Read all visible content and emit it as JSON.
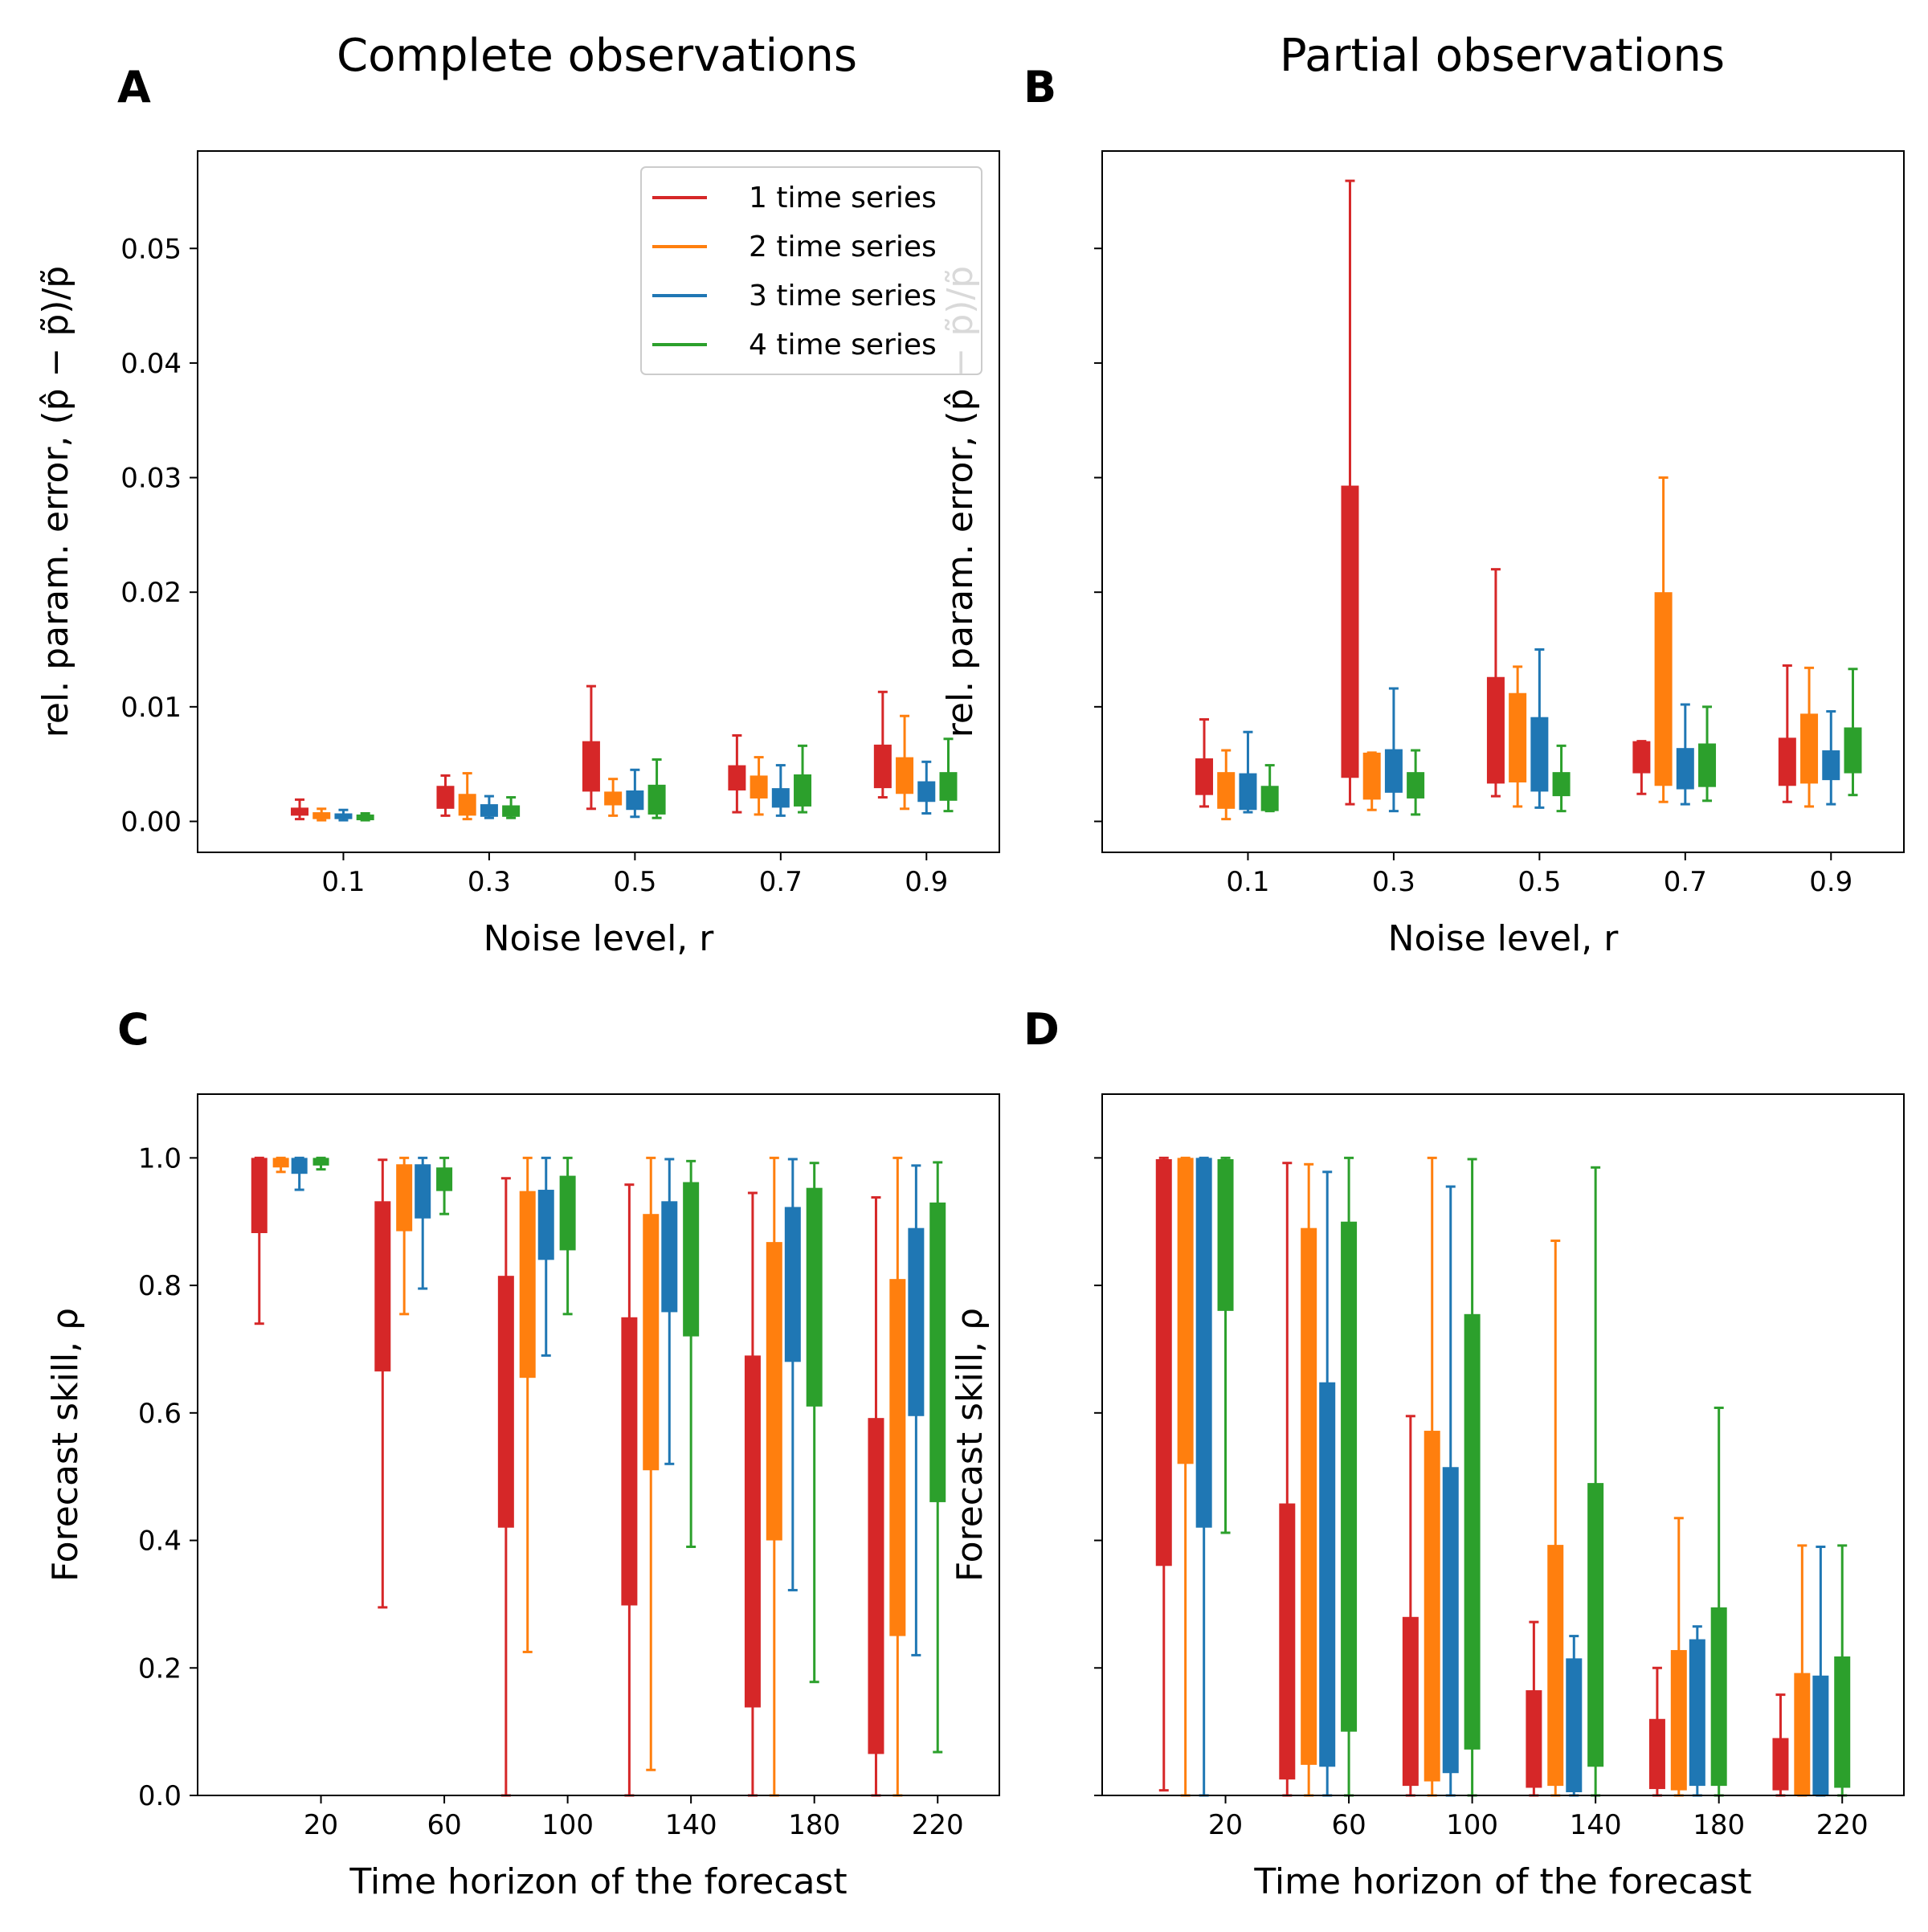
{
  "column_titles": [
    "Complete observations",
    "Partial observations"
  ],
  "legend": {
    "placement": "top-right",
    "items": [
      {
        "label": "1 time series",
        "color": "#d62728"
      },
      {
        "label": "2 time series",
        "color": "#ff7f0e"
      },
      {
        "label": "3 time series",
        "color": "#1f77b4"
      },
      {
        "label": "4 time series",
        "color": "#2ca02c"
      }
    ]
  },
  "chart_data": [
    {
      "panel": "A",
      "type": "box",
      "title": "Complete observations",
      "xlabel": "Noise level, r",
      "ylabel": "rel. param. error, (p̂ − p̃)/p̃",
      "xlim": [
        -0.1,
        1.0
      ],
      "ylim": [
        -0.0027,
        0.0585
      ],
      "xticks": [
        0.1,
        0.3,
        0.5,
        0.7,
        0.9
      ],
      "xtick_labels": [
        "0.1",
        "0.3",
        "0.5",
        "0.7",
        "0.9"
      ],
      "yticks": [
        0.0,
        0.01,
        0.02,
        0.03,
        0.04,
        0.05
      ],
      "ytick_labels": [
        "0.00",
        "0.01",
        "0.02",
        "0.03",
        "0.04",
        "0.05"
      ],
      "group_centers": [
        0.1,
        0.3,
        0.5,
        0.7,
        0.9
      ],
      "series": [
        {
          "name": "1 time series",
          "color": "#d62728",
          "x": [
            0.04,
            0.24,
            0.44,
            0.64,
            0.84
          ],
          "boxes": [
            [
              0.0002,
              0.0005,
              0.0012,
              0.0019
            ],
            [
              0.0005,
              0.0011,
              0.0031,
              0.004
            ],
            [
              0.0011,
              0.0026,
              0.007,
              0.0118
            ],
            [
              0.0008,
              0.0027,
              0.0049,
              0.0075
            ],
            [
              0.0021,
              0.0029,
              0.0067,
              0.0113
            ]
          ]
        },
        {
          "name": "2 time series",
          "color": "#ff7f0e",
          "x": [
            0.07,
            0.27,
            0.47,
            0.67,
            0.87
          ],
          "boxes": [
            [
              0.0001,
              0.0002,
              0.0008,
              0.0011
            ],
            [
              0.0002,
              0.0005,
              0.0024,
              0.0042
            ],
            [
              0.0005,
              0.0014,
              0.0026,
              0.0037
            ],
            [
              0.0006,
              0.002,
              0.004,
              0.0056
            ],
            [
              0.0011,
              0.0024,
              0.0056,
              0.0092
            ]
          ]
        },
        {
          "name": "3 time series",
          "color": "#1f77b4",
          "x": [
            0.1,
            0.3,
            0.5,
            0.7,
            0.9
          ],
          "boxes": [
            [
              0.0001,
              0.0002,
              0.0007,
              0.001
            ],
            [
              0.0003,
              0.0004,
              0.0015,
              0.0022
            ],
            [
              0.0004,
              0.001,
              0.0027,
              0.0045
            ],
            [
              0.0005,
              0.0012,
              0.0029,
              0.0049
            ],
            [
              0.0007,
              0.0017,
              0.0035,
              0.0052
            ]
          ]
        },
        {
          "name": "4 time series",
          "color": "#2ca02c",
          "x": [
            0.13,
            0.33,
            0.53,
            0.73,
            0.93
          ],
          "boxes": [
            [
              0.0001,
              0.0001,
              0.0006,
              0.0007
            ],
            [
              0.0003,
              0.0004,
              0.0014,
              0.0021
            ],
            [
              0.0003,
              0.0006,
              0.0032,
              0.0054
            ],
            [
              0.0008,
              0.0013,
              0.0041,
              0.0066
            ],
            [
              0.0009,
              0.0018,
              0.0043,
              0.0072
            ]
          ]
        }
      ]
    },
    {
      "panel": "B",
      "type": "box",
      "title": "Partial observations",
      "xlabel": "Noise level, r",
      "ylabel": "rel. param. error, (p̂ − p̃)/p̃",
      "xlim": [
        -0.1,
        1.0
      ],
      "ylim": [
        -0.0027,
        0.0585
      ],
      "xticks": [
        0.1,
        0.3,
        0.5,
        0.7,
        0.9
      ],
      "xtick_labels": [
        "0.1",
        "0.3",
        "0.5",
        "0.7",
        "0.9"
      ],
      "yticks": [
        0.0,
        0.01,
        0.02,
        0.03,
        0.04,
        0.05
      ],
      "ytick_labels": [],
      "group_centers": [
        0.1,
        0.3,
        0.5,
        0.7,
        0.9
      ],
      "series": [
        {
          "name": "1 time series",
          "color": "#d62728",
          "x": [
            0.04,
            0.24,
            0.44,
            0.64,
            0.84
          ],
          "boxes": [
            [
              0.0013,
              0.0023,
              0.0055,
              0.0089
            ],
            [
              0.0015,
              0.0038,
              0.0293,
              0.0559
            ],
            [
              0.0022,
              0.0033,
              0.0126,
              0.022
            ],
            [
              0.0024,
              0.0042,
              0.007,
              0.007
            ],
            [
              0.0017,
              0.0031,
              0.0073,
              0.0136
            ]
          ]
        },
        {
          "name": "2 time series",
          "color": "#ff7f0e",
          "x": [
            0.07,
            0.27,
            0.47,
            0.67,
            0.87
          ],
          "boxes": [
            [
              0.0002,
              0.0011,
              0.0043,
              0.0062
            ],
            [
              0.001,
              0.0019,
              0.006,
              0.006
            ],
            [
              0.0013,
              0.0034,
              0.0112,
              0.0135
            ],
            [
              0.0017,
              0.0031,
              0.02,
              0.03
            ],
            [
              0.0013,
              0.0033,
              0.0094,
              0.0134
            ]
          ]
        },
        {
          "name": "3 time series",
          "color": "#1f77b4",
          "x": [
            0.1,
            0.3,
            0.5,
            0.7,
            0.9
          ],
          "boxes": [
            [
              0.0008,
              0.001,
              0.0042,
              0.0078
            ],
            [
              0.0009,
              0.0025,
              0.0063,
              0.0116
            ],
            [
              0.0012,
              0.0026,
              0.0091,
              0.015
            ],
            [
              0.0015,
              0.0028,
              0.0064,
              0.0102
            ],
            [
              0.0015,
              0.0036,
              0.0062,
              0.0096
            ]
          ]
        },
        {
          "name": "4 time series",
          "color": "#2ca02c",
          "x": [
            0.13,
            0.33,
            0.53,
            0.73,
            0.93
          ],
          "boxes": [
            [
              0.0009,
              0.0009,
              0.0031,
              0.0049
            ],
            [
              0.0006,
              0.002,
              0.0043,
              0.0062
            ],
            [
              0.0009,
              0.0022,
              0.0043,
              0.0066
            ],
            [
              0.0018,
              0.003,
              0.0068,
              0.01
            ],
            [
              0.0023,
              0.0042,
              0.0082,
              0.0133
            ]
          ]
        }
      ]
    },
    {
      "panel": "C",
      "type": "box",
      "xlabel": "Time horizon of the forecast",
      "ylabel": "Forecast skill, ρ",
      "xlim": [
        -20,
        240
      ],
      "ylim": [
        0.0,
        1.1
      ],
      "xticks": [
        20,
        60,
        100,
        140,
        180,
        220
      ],
      "xtick_labels": [
        "20",
        "60",
        "100",
        "140",
        "180",
        "220"
      ],
      "yticks": [
        0.0,
        0.2,
        0.4,
        0.6,
        0.8,
        1.0
      ],
      "ytick_labels": [
        "0.0",
        "0.2",
        "0.4",
        "0.6",
        "0.8",
        "1.0"
      ],
      "series": [
        {
          "name": "1 time series",
          "color": "#d62728",
          "x": [
            0,
            40,
            80,
            120,
            160,
            200
          ],
          "boxes": [
            [
              0.74,
              0.882,
              1.0,
              1.0
            ],
            [
              0.295,
              0.665,
              0.932,
              0.997
            ],
            [
              0.0,
              0.42,
              0.815,
              0.968
            ],
            [
              0.0,
              0.298,
              0.75,
              0.958
            ],
            [
              0.0,
              0.138,
              0.69,
              0.945
            ],
            [
              0.0,
              0.065,
              0.592,
              0.938
            ]
          ]
        },
        {
          "name": "2 time series",
          "color": "#ff7f0e",
          "x": [
            7,
            47,
            87,
            127,
            167,
            207
          ],
          "boxes": [
            [
              0.978,
              0.985,
              1.0,
              1.0
            ],
            [
              0.755,
              0.885,
              0.99,
              1.0
            ],
            [
              0.225,
              0.655,
              0.948,
              1.0
            ],
            [
              0.04,
              0.51,
              0.912,
              1.0
            ],
            [
              0.0,
              0.4,
              0.868,
              1.0
            ],
            [
              0.0,
              0.25,
              0.81,
              1.0
            ]
          ]
        },
        {
          "name": "3 time series",
          "color": "#1f77b4",
          "x": [
            13,
            53,
            93,
            133,
            173,
            213
          ],
          "boxes": [
            [
              0.95,
              0.975,
              1.0,
              1.0
            ],
            [
              0.795,
              0.905,
              0.99,
              1.0
            ],
            [
              0.69,
              0.84,
              0.95,
              1.0
            ],
            [
              0.52,
              0.758,
              0.932,
              0.998
            ],
            [
              0.322,
              0.68,
              0.923,
              0.998
            ],
            [
              0.22,
              0.595,
              0.89,
              0.988
            ]
          ]
        },
        {
          "name": "4 time series",
          "color": "#2ca02c",
          "x": [
            20,
            60,
            100,
            140,
            180,
            220
          ],
          "boxes": [
            [
              0.982,
              0.988,
              1.0,
              1.0
            ],
            [
              0.912,
              0.948,
              0.985,
              1.0
            ],
            [
              0.755,
              0.855,
              0.972,
              1.0
            ],
            [
              0.39,
              0.72,
              0.962,
              0.995
            ],
            [
              0.178,
              0.61,
              0.953,
              0.992
            ],
            [
              0.068,
              0.46,
              0.93,
              0.993
            ]
          ]
        }
      ]
    },
    {
      "panel": "D",
      "type": "box",
      "xlabel": "Time horizon of the forecast",
      "ylabel": "Forecast skill, ρ",
      "xlim": [
        -20,
        240
      ],
      "ylim": [
        0.0,
        1.1
      ],
      "xticks": [
        20,
        60,
        100,
        140,
        180,
        220
      ],
      "xtick_labels": [
        "20",
        "60",
        "100",
        "140",
        "180",
        "220"
      ],
      "yticks": [
        0.0,
        0.2,
        0.4,
        0.6,
        0.8,
        1.0
      ],
      "ytick_labels": [],
      "series": [
        {
          "name": "1 time series",
          "color": "#d62728",
          "x": [
            0,
            40,
            80,
            120,
            160,
            200
          ],
          "boxes": [
            [
              0.008,
              0.36,
              0.998,
              1.0
            ],
            [
              0.0,
              0.025,
              0.458,
              0.992
            ],
            [
              0.0,
              0.015,
              0.28,
              0.595
            ],
            [
              0.0,
              0.012,
              0.165,
              0.272
            ],
            [
              0.0,
              0.01,
              0.12,
              0.2
            ],
            [
              0.0,
              0.008,
              0.09,
              0.158
            ]
          ]
        },
        {
          "name": "2 time series",
          "color": "#ff7f0e",
          "x": [
            7,
            47,
            87,
            127,
            167,
            207
          ],
          "boxes": [
            [
              0.0,
              0.52,
              1.0,
              1.0
            ],
            [
              0.0,
              0.048,
              0.89,
              0.99
            ],
            [
              0.0,
              0.022,
              0.572,
              1.0
            ],
            [
              0.0,
              0.015,
              0.393,
              0.87
            ],
            [
              0.0,
              0.008,
              0.228,
              0.435
            ],
            [
              0.0,
              0.0,
              0.192,
              0.392
            ]
          ]
        },
        {
          "name": "3 time series",
          "color": "#1f77b4",
          "x": [
            13,
            53,
            93,
            133,
            173,
            213
          ],
          "boxes": [
            [
              0.0,
              0.42,
              1.0,
              1.0
            ],
            [
              0.0,
              0.045,
              0.648,
              0.978
            ],
            [
              0.0,
              0.035,
              0.515,
              0.955
            ],
            [
              0.0,
              0.005,
              0.215,
              0.25
            ],
            [
              0.0,
              0.015,
              0.245,
              0.265
            ],
            [
              0.0,
              0.0,
              0.188,
              0.39
            ]
          ]
        },
        {
          "name": "4 time series",
          "color": "#2ca02c",
          "x": [
            20,
            60,
            100,
            140,
            180,
            220
          ],
          "boxes": [
            [
              0.412,
              0.76,
              0.998,
              1.0
            ],
            [
              0.0,
              0.1,
              0.9,
              1.0
            ],
            [
              0.0,
              0.072,
              0.755,
              0.998
            ],
            [
              0.0,
              0.045,
              0.49,
              0.985
            ],
            [
              0.0,
              0.015,
              0.295,
              0.608
            ],
            [
              0.0,
              0.012,
              0.218,
              0.392
            ]
          ]
        }
      ]
    }
  ]
}
